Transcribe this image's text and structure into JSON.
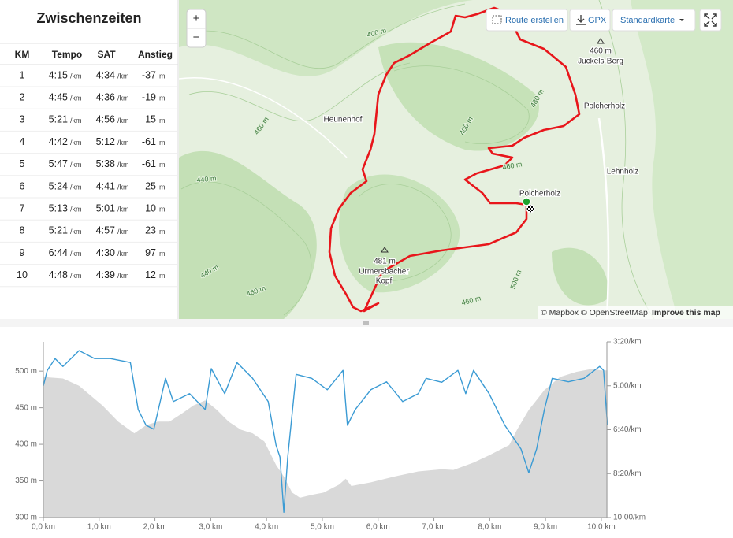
{
  "splits": {
    "title": "Zwischenzeiten",
    "columns": [
      "KM",
      "Tempo",
      "SAT",
      "Anstieg"
    ],
    "pace_unit": "/km",
    "climb_unit": "m",
    "rows": [
      [
        "1",
        "4:15",
        "4:34",
        "-37"
      ],
      [
        "2",
        "4:45",
        "4:36",
        "-19"
      ],
      [
        "3",
        "5:21",
        "4:56",
        "15"
      ],
      [
        "4",
        "4:42",
        "5:12",
        "-61"
      ],
      [
        "5",
        "5:47",
        "5:38",
        "-61"
      ],
      [
        "6",
        "5:24",
        "4:41",
        "25"
      ],
      [
        "7",
        "5:13",
        "5:01",
        "10"
      ],
      [
        "8",
        "5:21",
        "4:57",
        "23"
      ],
      [
        "9",
        "6:44",
        "4:30",
        "97"
      ],
      [
        "10",
        "4:48",
        "4:39",
        "12"
      ]
    ]
  },
  "map": {
    "zoom_in": "+",
    "zoom_out": "−",
    "buttons": [
      "Route erstellen",
      "GPX",
      "Standardkarte"
    ],
    "labels": [
      "Heunenhof",
      "460 m",
      "Juckels-Berg",
      "Polcherholz",
      "Lehnholz",
      "Polcherholz",
      "481 m",
      "Urmersbacher",
      "Kopf"
    ],
    "contour_labels": [
      "400 m",
      "400 m",
      "460 m",
      "480 m",
      "460 m",
      "440 m",
      "440 m",
      "460 m",
      "500 m",
      "460 m"
    ],
    "attribution": [
      "© Mapbox",
      "© OpenStreetMap",
      "Improve this map"
    ]
  },
  "chart_data": {
    "type": "line",
    "xlim": [
      0,
      10.1
    ],
    "ylim": [
      300,
      540
    ],
    "y2lim": [
      200,
      600
    ],
    "y2_reversed": true,
    "xticks": [
      {
        "value": 0,
        "label": "0,0 km"
      },
      {
        "value": 1,
        "label": "1,0 km"
      },
      {
        "value": 2,
        "label": "2,0 km"
      },
      {
        "value": 3,
        "label": "3,0 km"
      },
      {
        "value": 4,
        "label": "4,0 km"
      },
      {
        "value": 5,
        "label": "5,0 km"
      },
      {
        "value": 6,
        "label": "6,0 km"
      },
      {
        "value": 7,
        "label": "7,0 km"
      },
      {
        "value": 8,
        "label": "8,0 km"
      },
      {
        "value": 9,
        "label": "9,0 km"
      },
      {
        "value": 10,
        "label": "10,0 km"
      }
    ],
    "yticks": [
      {
        "value": 300,
        "label": "300 m"
      },
      {
        "value": 350,
        "label": "350 m"
      },
      {
        "value": 400,
        "label": "400 m"
      },
      {
        "value": 450,
        "label": "450 m"
      },
      {
        "value": 500,
        "label": "500 m"
      }
    ],
    "y2ticks": [
      {
        "value": 200,
        "label": "3:20/km"
      },
      {
        "value": 300,
        "label": "5:00/km"
      },
      {
        "value": 400,
        "label": "6:40/km"
      },
      {
        "value": 500,
        "label": "8:20/km"
      },
      {
        "value": 600,
        "label": "10:00/km"
      }
    ],
    "series": [
      {
        "color": "#d9d9d9",
        "fill": true,
        "x": [
          0,
          0.35,
          0.64,
          1.06,
          1.34,
          1.63,
          1.84,
          2.05,
          2.26,
          2.48,
          2.69,
          2.9,
          3.11,
          3.32,
          3.54,
          3.75,
          3.96,
          4.17,
          4.31,
          4.46,
          4.6,
          4.81,
          5.02,
          5.3,
          5.42,
          5.52,
          5.87,
          6.29,
          6.72,
          7.14,
          7.35,
          7.71,
          7.99,
          8.35,
          8.49,
          8.7,
          8.98,
          9.26,
          9.55,
          9.83,
          10.0,
          10.11
        ],
        "values": [
          492,
          490,
          480,
          453,
          431,
          415,
          426,
          431,
          431,
          442,
          453,
          460,
          447,
          431,
          420,
          415,
          404,
          372,
          356,
          334,
          327,
          331,
          334,
          345,
          353,
          343,
          348,
          356,
          363,
          366,
          365,
          375,
          385,
          399,
          420,
          447,
          474,
          492,
          499,
          503,
          501,
          501
        ]
      },
      {
        "color": "#3b9bd4",
        "axis": "y2",
        "x": [
          0,
          0.07,
          0.21,
          0.35,
          0.64,
          0.92,
          1.2,
          1.56,
          1.7,
          1.84,
          1.98,
          2.19,
          2.33,
          2.62,
          2.9,
          3.01,
          3.25,
          3.47,
          3.75,
          4.03,
          4.17,
          4.24,
          4.31,
          4.38,
          4.53,
          4.81,
          5.09,
          5.37,
          5.45,
          5.59,
          5.87,
          6.15,
          6.44,
          6.72,
          6.86,
          7.14,
          7.43,
          7.57,
          7.71,
          7.99,
          8.27,
          8.56,
          8.7,
          8.84,
          8.98,
          9.12,
          9.41,
          9.69,
          9.97,
          10.04,
          10.11
        ],
        "values": [
          300,
          265,
          238,
          256,
          220,
          238,
          238,
          247,
          354,
          390,
          399,
          283,
          336,
          318,
          354,
          261,
          318,
          247,
          283,
          336,
          435,
          462,
          588,
          462,
          274,
          283,
          309,
          265,
          390,
          354,
          309,
          291,
          336,
          318,
          283,
          292,
          265,
          318,
          265,
          318,
          390,
          444,
          498,
          444,
          354,
          283,
          291,
          283,
          256,
          265,
          390
        ]
      }
    ]
  }
}
